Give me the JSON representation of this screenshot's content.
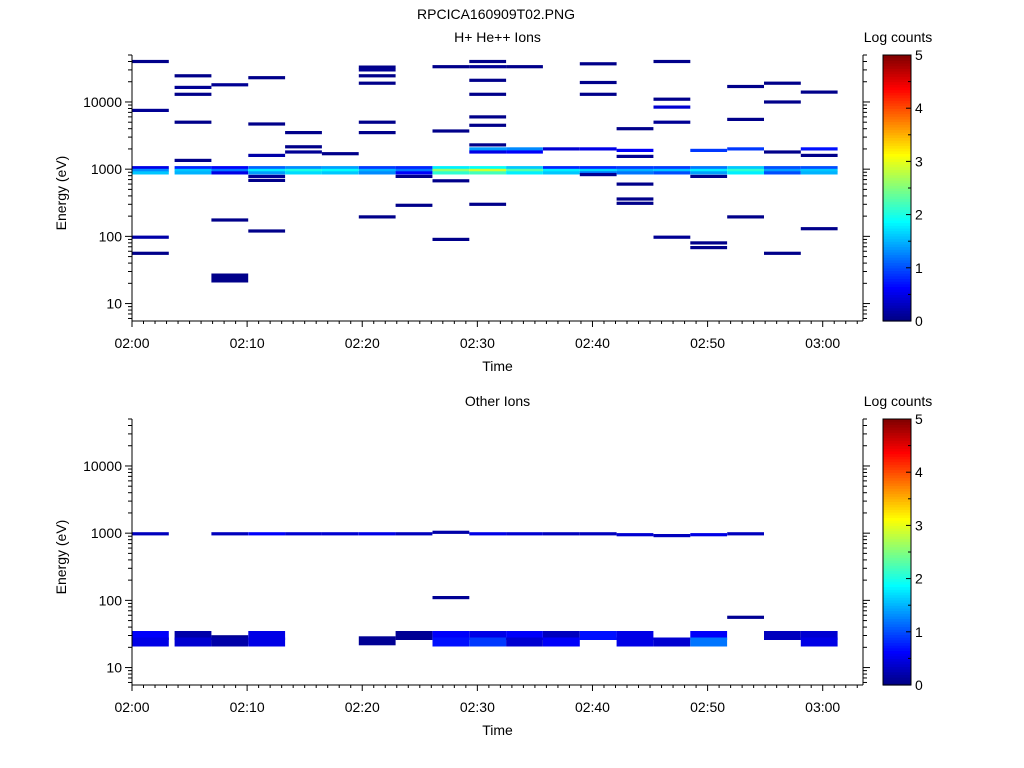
{
  "figure_title": "RPCICA160909T02.PNG",
  "chart_data": [
    {
      "type": "heatmap",
      "title": "H+ He++ Ions",
      "xlabel": "Time",
      "ylabel": "Energy (eV)",
      "x_ticks": [
        "02:00",
        "02:10",
        "02:20",
        "02:30",
        "02:40",
        "02:50",
        "03:00"
      ],
      "x_range_minutes": [
        0,
        63.5
      ],
      "y_ticks": [
        "10",
        "100",
        "1000",
        "10000"
      ],
      "ylim": [
        5.5,
        50000
      ],
      "y_scale": "log",
      "colorbar": {
        "label": "Log counts",
        "range": [
          0,
          5
        ],
        "ticks": [
          "0",
          "1",
          "2",
          "3",
          "4",
          "5"
        ]
      },
      "cells": [
        [
          0.0,
          3.2,
          40000,
          0.05
        ],
        [
          0.0,
          3.2,
          7500,
          0.1
        ],
        [
          0.0,
          3.2,
          1050,
          0.5
        ],
        [
          0.0,
          3.2,
          960,
          1.3
        ],
        [
          0.0,
          3.2,
          880,
          1.6
        ],
        [
          0.0,
          3.2,
          97,
          0.2
        ],
        [
          0.0,
          3.2,
          56,
          0.05
        ],
        [
          3.7,
          6.9,
          24500,
          0.05
        ],
        [
          3.7,
          6.9,
          16500,
          0.1
        ],
        [
          3.7,
          6.9,
          13000,
          0.05
        ],
        [
          3.7,
          6.9,
          5000,
          0.05
        ],
        [
          3.7,
          6.9,
          1350,
          0.05
        ],
        [
          3.7,
          6.9,
          1050,
          0.8
        ],
        [
          3.7,
          6.9,
          960,
          1.6
        ],
        [
          3.7,
          6.9,
          880,
          1.5
        ],
        [
          6.9,
          10.1,
          18000,
          0.1
        ],
        [
          6.9,
          10.1,
          1050,
          0.6
        ],
        [
          6.9,
          10.1,
          960,
          1.2
        ],
        [
          6.9,
          10.1,
          880,
          0.5
        ],
        [
          6.9,
          10.1,
          175,
          0.05
        ],
        [
          6.9,
          10.1,
          24,
          0.05
        ],
        [
          10.1,
          13.3,
          23000,
          0.05
        ],
        [
          10.1,
          13.3,
          4700,
          0.05
        ],
        [
          10.1,
          13.3,
          1600,
          0.2
        ],
        [
          10.1,
          13.3,
          1050,
          1.1
        ],
        [
          10.1,
          13.3,
          960,
          1.8
        ],
        [
          10.1,
          13.3,
          880,
          1.4
        ],
        [
          10.1,
          13.3,
          780,
          0.1
        ],
        [
          10.1,
          13.3,
          680,
          0.05
        ],
        [
          10.1,
          13.3,
          120,
          0.05
        ],
        [
          13.3,
          16.5,
          3500,
          0.05
        ],
        [
          13.3,
          16.5,
          2150,
          0.05
        ],
        [
          13.3,
          16.5,
          1800,
          0.1
        ],
        [
          13.3,
          16.5,
          1050,
          1.3
        ],
        [
          13.3,
          16.5,
          960,
          2.0
        ],
        [
          13.3,
          16.5,
          880,
          1.7
        ],
        [
          16.5,
          19.7,
          1700,
          0.05
        ],
        [
          16.5,
          19.7,
          1050,
          1.4
        ],
        [
          16.5,
          19.7,
          960,
          1.9
        ],
        [
          16.5,
          19.7,
          880,
          1.6
        ],
        [
          19.7,
          22.9,
          33000,
          0.05
        ],
        [
          19.7,
          22.9,
          30000,
          0.1
        ],
        [
          19.7,
          22.9,
          24500,
          0.05
        ],
        [
          19.7,
          22.9,
          19000,
          0.05
        ],
        [
          19.7,
          22.9,
          5000,
          0.05
        ],
        [
          19.7,
          22.9,
          3500,
          0.05
        ],
        [
          19.7,
          22.9,
          1050,
          0.9
        ],
        [
          19.7,
          22.9,
          960,
          1.5
        ],
        [
          19.7,
          22.9,
          880,
          1.3
        ],
        [
          19.7,
          22.9,
          195,
          0.05
        ],
        [
          22.9,
          26.1,
          1050,
          0.8
        ],
        [
          22.9,
          26.1,
          960,
          1.2
        ],
        [
          22.9,
          26.1,
          880,
          0.6
        ],
        [
          22.9,
          26.1,
          780,
          0.05
        ],
        [
          22.9,
          26.1,
          290,
          0.05
        ],
        [
          26.1,
          29.3,
          33500,
          0.05
        ],
        [
          26.1,
          29.3,
          3700,
          0.05
        ],
        [
          26.1,
          29.3,
          1050,
          1.8
        ],
        [
          26.1,
          29.3,
          960,
          2.6
        ],
        [
          26.1,
          29.3,
          880,
          2.1
        ],
        [
          26.1,
          29.3,
          670,
          0.05
        ],
        [
          26.1,
          29.3,
          90,
          0.05
        ],
        [
          29.3,
          32.5,
          40000,
          0.05
        ],
        [
          29.3,
          32.5,
          33500,
          0.1
        ],
        [
          29.3,
          32.5,
          21000,
          0.05
        ],
        [
          29.3,
          32.5,
          13000,
          0.05
        ],
        [
          29.3,
          32.5,
          6000,
          0.05
        ],
        [
          29.3,
          32.5,
          4500,
          0.05
        ],
        [
          29.3,
          32.5,
          2300,
          0.05
        ],
        [
          29.3,
          32.5,
          2000,
          1.4
        ],
        [
          29.3,
          32.5,
          1800,
          0.5
        ],
        [
          29.3,
          32.5,
          1050,
          1.9
        ],
        [
          29.3,
          32.5,
          960,
          2.9
        ],
        [
          29.3,
          32.5,
          880,
          2.2
        ],
        [
          29.3,
          32.5,
          300,
          0.05
        ],
        [
          32.5,
          35.7,
          33500,
          0.05
        ],
        [
          32.5,
          35.7,
          2000,
          1.3
        ],
        [
          32.5,
          35.7,
          1800,
          0.6
        ],
        [
          32.5,
          35.7,
          1050,
          1.6
        ],
        [
          32.5,
          35.7,
          960,
          2.3
        ],
        [
          32.5,
          35.7,
          880,
          1.8
        ],
        [
          35.7,
          38.9,
          2000,
          0.4
        ],
        [
          35.7,
          38.9,
          1050,
          0.8
        ],
        [
          35.7,
          38.9,
          960,
          1.8
        ],
        [
          35.7,
          38.9,
          880,
          1.6
        ],
        [
          38.9,
          42.1,
          37000,
          0.05
        ],
        [
          38.9,
          42.1,
          19500,
          0.05
        ],
        [
          38.9,
          42.1,
          13000,
          0.05
        ],
        [
          38.9,
          42.1,
          2000,
          0.5
        ],
        [
          38.9,
          42.1,
          1050,
          0.8
        ],
        [
          38.9,
          42.1,
          960,
          1.7
        ],
        [
          38.9,
          42.1,
          880,
          1.2
        ],
        [
          38.9,
          42.1,
          830,
          0.1
        ],
        [
          42.1,
          45.3,
          4000,
          0.05
        ],
        [
          42.1,
          45.3,
          1900,
          0.6
        ],
        [
          42.1,
          45.3,
          1550,
          0.1
        ],
        [
          42.1,
          45.3,
          1050,
          0.9
        ],
        [
          42.1,
          45.3,
          960,
          1.5
        ],
        [
          42.1,
          45.3,
          880,
          1.2
        ],
        [
          42.1,
          45.3,
          600,
          0.05
        ],
        [
          42.1,
          45.3,
          360,
          0.05
        ],
        [
          42.1,
          45.3,
          310,
          0.05
        ],
        [
          45.3,
          48.5,
          40000,
          0.05
        ],
        [
          45.3,
          48.5,
          11000,
          0.05
        ],
        [
          45.3,
          48.5,
          8400,
          0.4
        ],
        [
          45.3,
          48.5,
          5000,
          0.1
        ],
        [
          45.3,
          48.5,
          1050,
          0.9
        ],
        [
          45.3,
          48.5,
          960,
          1.6
        ],
        [
          45.3,
          48.5,
          880,
          1.0
        ],
        [
          45.3,
          48.5,
          97,
          0.1
        ],
        [
          48.5,
          51.7,
          1900,
          0.9
        ],
        [
          48.5,
          51.7,
          1050,
          1.2
        ],
        [
          48.5,
          51.7,
          960,
          1.8
        ],
        [
          48.5,
          51.7,
          880,
          1.4
        ],
        [
          48.5,
          51.7,
          780,
          0.05
        ],
        [
          48.5,
          51.7,
          80,
          0.05
        ],
        [
          48.5,
          51.7,
          68,
          0.05
        ],
        [
          51.7,
          54.9,
          17000,
          0.05
        ],
        [
          51.7,
          54.9,
          5500,
          0.05
        ],
        [
          51.7,
          54.9,
          2000,
          0.9
        ],
        [
          51.7,
          54.9,
          1050,
          1.6
        ],
        [
          51.7,
          54.9,
          960,
          2.1
        ],
        [
          51.7,
          54.9,
          880,
          1.8
        ],
        [
          51.7,
          54.9,
          195,
          0.05
        ],
        [
          54.9,
          58.1,
          19000,
          0.05
        ],
        [
          54.9,
          58.1,
          10000,
          0.05
        ],
        [
          54.9,
          58.1,
          1800,
          0.05
        ],
        [
          54.9,
          58.1,
          1050,
          1.0
        ],
        [
          54.9,
          58.1,
          960,
          1.4
        ],
        [
          54.9,
          58.1,
          880,
          1.0
        ],
        [
          54.9,
          58.1,
          56,
          0.05
        ],
        [
          58.1,
          61.3,
          14000,
          0.05
        ],
        [
          58.1,
          61.3,
          2000,
          0.7
        ],
        [
          58.1,
          61.3,
          1600,
          0.05
        ],
        [
          58.1,
          61.3,
          1050,
          1.0
        ],
        [
          58.1,
          61.3,
          960,
          1.6
        ],
        [
          58.1,
          61.3,
          880,
          1.5
        ],
        [
          58.1,
          61.3,
          130,
          0.05
        ]
      ]
    },
    {
      "type": "heatmap",
      "title": "Other Ions",
      "xlabel": "Time",
      "ylabel": "Energy (eV)",
      "x_ticks": [
        "02:00",
        "02:10",
        "02:20",
        "02:30",
        "02:40",
        "02:50",
        "03:00"
      ],
      "x_range_minutes": [
        0,
        63.5
      ],
      "y_ticks": [
        "10",
        "100",
        "1000",
        "10000"
      ],
      "ylim": [
        5.5,
        50000
      ],
      "y_scale": "log",
      "colorbar": {
        "label": "Log counts",
        "range": [
          0,
          5
        ],
        "ticks": [
          "0",
          "1",
          "2",
          "3",
          "4",
          "5"
        ]
      },
      "cells": [
        [
          0.0,
          3.2,
          980,
          0.3
        ],
        [
          0.0,
          3.2,
          30,
          0.6
        ],
        [
          0.0,
          3.2,
          24,
          0.5
        ],
        [
          3.7,
          6.9,
          30,
          0.2
        ],
        [
          3.7,
          6.9,
          24,
          0.4
        ],
        [
          6.9,
          10.1,
          980,
          0.3
        ],
        [
          6.9,
          10.1,
          26,
          0.1
        ],
        [
          6.9,
          10.1,
          24,
          0.2
        ],
        [
          10.1,
          13.3,
          980,
          0.6
        ],
        [
          10.1,
          13.3,
          30,
          0.5
        ],
        [
          10.1,
          13.3,
          24,
          0.5
        ],
        [
          13.3,
          16.5,
          980,
          0.4
        ],
        [
          16.5,
          19.7,
          980,
          0.4
        ],
        [
          19.7,
          22.9,
          980,
          0.5
        ],
        [
          19.7,
          22.9,
          25,
          0.1
        ],
        [
          22.9,
          26.1,
          980,
          0.3
        ],
        [
          22.9,
          26.1,
          30,
          0.1
        ],
        [
          26.1,
          29.3,
          1030,
          0.2
        ],
        [
          26.1,
          29.3,
          110,
          0.1
        ],
        [
          26.1,
          29.3,
          30,
          0.6
        ],
        [
          26.1,
          29.3,
          24,
          0.7
        ],
        [
          29.3,
          32.5,
          980,
          0.5
        ],
        [
          29.3,
          32.5,
          30,
          0.5
        ],
        [
          29.3,
          32.5,
          24,
          0.9
        ],
        [
          32.5,
          35.7,
          980,
          0.4
        ],
        [
          32.5,
          35.7,
          30,
          0.6
        ],
        [
          32.5,
          35.7,
          24,
          0.4
        ],
        [
          35.7,
          38.9,
          980,
          0.3
        ],
        [
          35.7,
          38.9,
          30,
          0.3
        ],
        [
          35.7,
          38.9,
          24,
          0.6
        ],
        [
          38.9,
          42.1,
          980,
          0.3
        ],
        [
          38.9,
          42.1,
          30,
          0.7
        ],
        [
          42.1,
          45.3,
          950,
          0.4
        ],
        [
          42.1,
          45.3,
          30,
          0.5
        ],
        [
          42.1,
          45.3,
          24,
          0.5
        ],
        [
          45.3,
          48.5,
          920,
          0.3
        ],
        [
          45.3,
          48.5,
          24,
          0.4
        ],
        [
          48.5,
          51.7,
          950,
          0.5
        ],
        [
          48.5,
          51.7,
          30,
          0.6
        ],
        [
          48.5,
          51.7,
          24,
          1.2
        ],
        [
          51.7,
          54.9,
          980,
          0.3
        ],
        [
          51.7,
          54.9,
          56,
          0.1
        ],
        [
          54.9,
          58.1,
          30,
          0.3
        ],
        [
          58.1,
          61.3,
          30,
          0.4
        ],
        [
          58.1,
          61.3,
          24,
          0.5
        ]
      ]
    }
  ]
}
